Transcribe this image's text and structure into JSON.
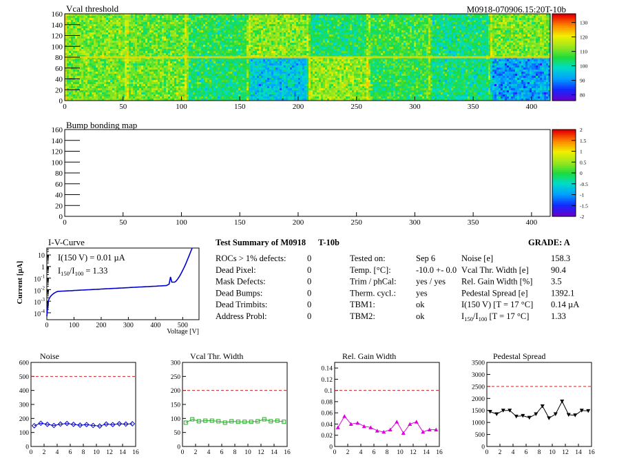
{
  "page": {
    "module_label": "M0918-070906.15:20T-10b"
  },
  "vcal_map": {
    "title": "Vcal threshold",
    "x_ticks": [
      "0",
      "50",
      "100",
      "150",
      "200",
      "250",
      "300",
      "350",
      "400"
    ],
    "y_ticks": [
      "0",
      "20",
      "40",
      "60",
      "80",
      "100",
      "120",
      "140",
      "160"
    ],
    "colorbar_ticks": [
      "80",
      "90",
      "100",
      "110",
      "120",
      "130"
    ],
    "colorbar_range": [
      76,
      136
    ],
    "map_grid": {
      "cols": 416,
      "rows": 160
    },
    "roc_means": [
      [
        112,
        110,
        106,
        112,
        104,
        107,
        103,
        111
      ],
      [
        111,
        111,
        104,
        96,
        113,
        106,
        103,
        92
      ]
    ],
    "note_rows": "roc_means[0] is the top row of readout chips, roc_means[1] the bottom row; values in Vcal units (colour scale)"
  },
  "bump_map": {
    "title": "Bump bonding map",
    "x_ticks": [
      "0",
      "50",
      "100",
      "150",
      "200",
      "250",
      "300",
      "350",
      "400"
    ],
    "y_ticks": [
      "0",
      "20",
      "40",
      "60",
      "80",
      "100",
      "120",
      "140",
      "160"
    ],
    "colorbar_ticks": [
      "-2",
      "-1.5",
      "-1",
      "-0.5",
      "0",
      "0.5",
      "1",
      "1.5",
      "2"
    ],
    "colorbar_range": [
      -2,
      2
    ]
  },
  "iv_curve": {
    "title": "I-V-Curve",
    "ylabel": "Current [µA]",
    "xlabel": "Voltage [V]",
    "annotation_i150": "I(150 V) = 0.01 µA",
    "annotation_ratio_prefix": "I",
    "annotation_ratio_sub1": "150",
    "annotation_ratio_mid": "/I",
    "annotation_ratio_sub2": "100",
    "annotation_ratio_value": "=  1.33",
    "x_ticks": [
      "0",
      "100",
      "200",
      "300",
      "400",
      "500"
    ],
    "y_exp_labels": [
      "-4",
      "-3",
      "-2",
      "-1",
      "",
      "1"
    ],
    "y_plain_labels": [
      "",
      "",
      "",
      "",
      "1",
      "10"
    ],
    "xlim": [
      0,
      560
    ],
    "ylim_log10": [
      -4.6,
      1.6
    ],
    "curve_color": "#0000cc"
  },
  "summary": {
    "title": "Test Summary of M0918",
    "test": "T-10b",
    "grade_label": "GRADE:  A",
    "defects": [
      {
        "label": "ROCs > 1% defects:",
        "value": "0"
      },
      {
        "label": "Dead Pixel:",
        "value": "0"
      },
      {
        "label": "Mask Defects:",
        "value": "0"
      },
      {
        "label": "Dead Bumps:",
        "value": "0"
      },
      {
        "label": "Dead Trimbits:",
        "value": "0"
      },
      {
        "label": "Address Probl:",
        "value": "0"
      }
    ],
    "conditions": [
      {
        "label": "Tested on:",
        "value": "Sep 6"
      },
      {
        "label": "Temp. [°C]:",
        "value": "-10.0 +- 0.0"
      },
      {
        "label": "Trim / phCal:",
        "value": "yes / yes"
      },
      {
        "label": "Therm. cycl.:",
        "value": "yes"
      },
      {
        "label": "TBM1:",
        "value": "ok"
      },
      {
        "label": "TBM2:",
        "value": "ok"
      }
    ],
    "results": [
      {
        "label": "Noise [e]",
        "value": "158.3"
      },
      {
        "label": "Vcal Thr. Width [e]",
        "value": "90.4"
      },
      {
        "label": "Rel. Gain Width [%]",
        "value": "3.5"
      },
      {
        "label": "Pedestal Spread [e]",
        "value": "1392.1"
      },
      {
        "label": "I(150 V) [T = 17 °C]",
        "value": "0.14 µA"
      },
      {
        "label_prefix": "I",
        "label_sub1": "150",
        "label_mid": "/I",
        "label_sub2": "100",
        "label_suffix": "  [T = 17 °C]",
        "value": "1.33"
      }
    ]
  },
  "chart_data": [
    {
      "type": "line",
      "title": "Noise",
      "x": [
        0.5,
        1.5,
        2.5,
        3.5,
        4.5,
        5.5,
        6.5,
        7.5,
        8.5,
        9.5,
        10.5,
        11.5,
        12.5,
        13.5,
        14.5,
        15.5
      ],
      "values": [
        148,
        166,
        158,
        150,
        160,
        164,
        158,
        152,
        156,
        150,
        146,
        160,
        156,
        162,
        160,
        162
      ],
      "xlim": [
        0,
        16
      ],
      "ylim": [
        0,
        600
      ],
      "x_ticks": [
        "0",
        "2",
        "4",
        "6",
        "8",
        "10",
        "12",
        "14",
        "16"
      ],
      "y_ticks": [
        "0",
        "100",
        "200",
        "300",
        "400",
        "500",
        "600"
      ],
      "threshold": 500,
      "color": "#0000cc",
      "marker": "diamond"
    },
    {
      "type": "line",
      "title": "Vcal Thr. Width",
      "x": [
        0.5,
        1.5,
        2.5,
        3.5,
        4.5,
        5.5,
        6.5,
        7.5,
        8.5,
        9.5,
        10.5,
        11.5,
        12.5,
        13.5,
        14.5,
        15.5
      ],
      "values": [
        85,
        97,
        90,
        92,
        92,
        90,
        85,
        90,
        88,
        88,
        88,
        90,
        97,
        90,
        92,
        88
      ],
      "xlim": [
        0,
        16
      ],
      "ylim": [
        0,
        300
      ],
      "x_ticks": [
        "0",
        "2",
        "4",
        "6",
        "8",
        "10",
        "12",
        "14",
        "16"
      ],
      "y_ticks": [
        "0",
        "50",
        "100",
        "150",
        "200",
        "250",
        "300"
      ],
      "threshold": 200,
      "color": "#22aa22",
      "marker": "square"
    },
    {
      "type": "line",
      "title": "Rel. Gain Width",
      "x": [
        0.5,
        1.5,
        2.5,
        3.5,
        4.5,
        5.5,
        6.5,
        7.5,
        8.5,
        9.5,
        10.5,
        11.5,
        12.5,
        13.5,
        14.5,
        15.5
      ],
      "values": [
        0.034,
        0.054,
        0.04,
        0.042,
        0.036,
        0.034,
        0.028,
        0.026,
        0.03,
        0.044,
        0.024,
        0.04,
        0.044,
        0.026,
        0.03,
        0.03
      ],
      "xlim": [
        0,
        16
      ],
      "ylim": [
        0,
        0.15
      ],
      "x_ticks": [
        "0",
        "2",
        "4",
        "6",
        "8",
        "10",
        "12",
        "14",
        "16"
      ],
      "y_ticks": [
        "0",
        "0.02",
        "0.04",
        "0.06",
        "0.08",
        "0.1",
        "0.12",
        "0.14"
      ],
      "y_tick_values": [
        0,
        0.02,
        0.04,
        0.06,
        0.08,
        0.1,
        0.12,
        0.14
      ],
      "threshold": 0.1,
      "color": "#dd00dd",
      "marker": "triangle"
    },
    {
      "type": "line",
      "title": "Pedestal Spread",
      "x": [
        0.5,
        1.5,
        2.5,
        3.5,
        4.5,
        5.5,
        6.5,
        7.5,
        8.5,
        9.5,
        10.5,
        11.5,
        12.5,
        13.5,
        14.5,
        15.5
      ],
      "values": [
        1450,
        1350,
        1500,
        1500,
        1250,
        1280,
        1200,
        1350,
        1680,
        1180,
        1350,
        1880,
        1320,
        1300,
        1500,
        1480
      ],
      "xlim": [
        0,
        16
      ],
      "ylim": [
        0,
        3500
      ],
      "x_ticks": [
        "0",
        "2",
        "4",
        "6",
        "8",
        "10",
        "12",
        "14",
        "16"
      ],
      "y_ticks": [
        "0",
        "500",
        "1000",
        "1500",
        "2000",
        "2500",
        "3000",
        "3500"
      ],
      "threshold": 2500,
      "color": "#000000",
      "marker": "triangle-down"
    }
  ],
  "colors": {
    "threshold_line": "#cc2222"
  }
}
